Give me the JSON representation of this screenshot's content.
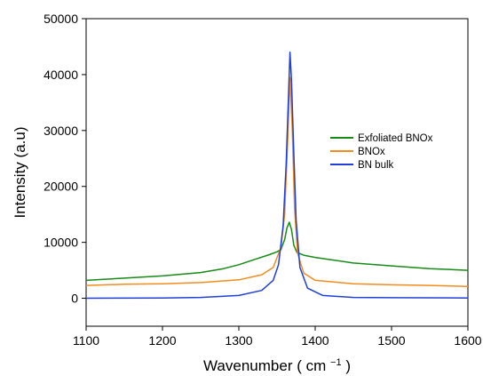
{
  "chart_data": {
    "type": "line",
    "title": "",
    "xlabel": "Wavenumber",
    "xlabel_unit_base": "cm",
    "xlabel_unit_exp": "−1",
    "ylabel": "Intensity (a.u)",
    "xlim": [
      1100,
      1600
    ],
    "ylim": [
      -5000,
      50000
    ],
    "xticks": [
      1100,
      1200,
      1300,
      1400,
      1500,
      1600
    ],
    "yticks": [
      0,
      10000,
      20000,
      30000,
      40000,
      50000
    ],
    "grid": false,
    "legend_position": "right",
    "series": [
      {
        "name": "Exfoliated BNOx",
        "color": "#178a17",
        "points": [
          [
            1100,
            3200
          ],
          [
            1150,
            3600
          ],
          [
            1200,
            4000
          ],
          [
            1250,
            4600
          ],
          [
            1280,
            5300
          ],
          [
            1300,
            6000
          ],
          [
            1320,
            6900
          ],
          [
            1340,
            7800
          ],
          [
            1350,
            8300
          ],
          [
            1355,
            8700
          ],
          [
            1360,
            10500
          ],
          [
            1363,
            12600
          ],
          [
            1366,
            13600
          ],
          [
            1369,
            12300
          ],
          [
            1372,
            9500
          ],
          [
            1376,
            8200
          ],
          [
            1385,
            7700
          ],
          [
            1400,
            7300
          ],
          [
            1420,
            6900
          ],
          [
            1450,
            6300
          ],
          [
            1500,
            5800
          ],
          [
            1550,
            5300
          ],
          [
            1600,
            5000
          ]
        ]
      },
      {
        "name": "BNOx",
        "color": "#f28c1e",
        "points": [
          [
            1100,
            2300
          ],
          [
            1150,
            2500
          ],
          [
            1200,
            2600
          ],
          [
            1250,
            2800
          ],
          [
            1300,
            3300
          ],
          [
            1330,
            4200
          ],
          [
            1345,
            5500
          ],
          [
            1355,
            9000
          ],
          [
            1360,
            15000
          ],
          [
            1364,
            28000
          ],
          [
            1367,
            39500
          ],
          [
            1370,
            30000
          ],
          [
            1373,
            16000
          ],
          [
            1377,
            8000
          ],
          [
            1385,
            4500
          ],
          [
            1400,
            3200
          ],
          [
            1450,
            2600
          ],
          [
            1500,
            2400
          ],
          [
            1550,
            2300
          ],
          [
            1600,
            2100
          ]
        ]
      },
      {
        "name": "BN bulk",
        "color": "#1f3fd8",
        "points": [
          [
            1100,
            0
          ],
          [
            1200,
            50
          ],
          [
            1250,
            150
          ],
          [
            1300,
            500
          ],
          [
            1330,
            1400
          ],
          [
            1345,
            3200
          ],
          [
            1352,
            6000
          ],
          [
            1358,
            13000
          ],
          [
            1362,
            24000
          ],
          [
            1365,
            36000
          ],
          [
            1367,
            44000
          ],
          [
            1369,
            39000
          ],
          [
            1372,
            26000
          ],
          [
            1375,
            14000
          ],
          [
            1380,
            5500
          ],
          [
            1390,
            1800
          ],
          [
            1410,
            500
          ],
          [
            1450,
            150
          ],
          [
            1500,
            100
          ],
          [
            1600,
            50
          ]
        ]
      }
    ]
  }
}
